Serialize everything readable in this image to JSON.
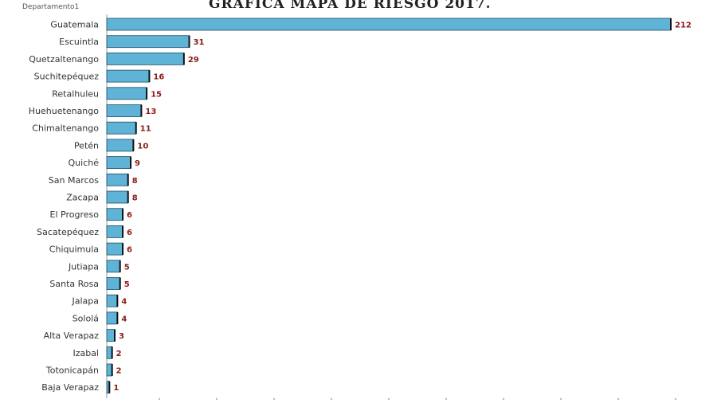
{
  "chart_data": {
    "type": "bar",
    "orientation": "horizontal",
    "title": "GRAFICA MAPA DE RIESGO 2017.",
    "dimension_label": "Departamento1",
    "categories": [
      "Guatemala",
      "Escuintla",
      "Quetzaltenango",
      "Suchitepéquez",
      "Retalhuleu",
      "Huehuetenango",
      "Chimaltenango",
      "Petén",
      "Quiché",
      "San Marcos",
      "Zacapa",
      "El Progreso",
      "Sacatepéquez",
      "Chiquimula",
      "Jutiapa",
      "Santa Rosa",
      "Jalapa",
      "Sololá",
      "Alta Verapaz",
      "Izabal",
      "Totonicapán",
      "Baja Verapaz"
    ],
    "values": [
      212,
      31,
      29,
      16,
      15,
      13,
      11,
      10,
      9,
      8,
      8,
      6,
      6,
      6,
      5,
      5,
      4,
      4,
      3,
      2,
      2,
      1
    ],
    "value_labels": [
      "212",
      "31",
      "29",
      "16",
      "15",
      "13",
      "11",
      "10",
      "9",
      "8",
      "8",
      "6",
      "6",
      "6",
      "5",
      "5",
      "4",
      "4",
      "3",
      "2",
      "2",
      "1"
    ],
    "xlim": [
      0,
      212
    ],
    "grid": false,
    "colors": {
      "bar": "#5fb3d6",
      "bar_border": "#1d4f66",
      "value_label": "#8b1a1a"
    }
  }
}
